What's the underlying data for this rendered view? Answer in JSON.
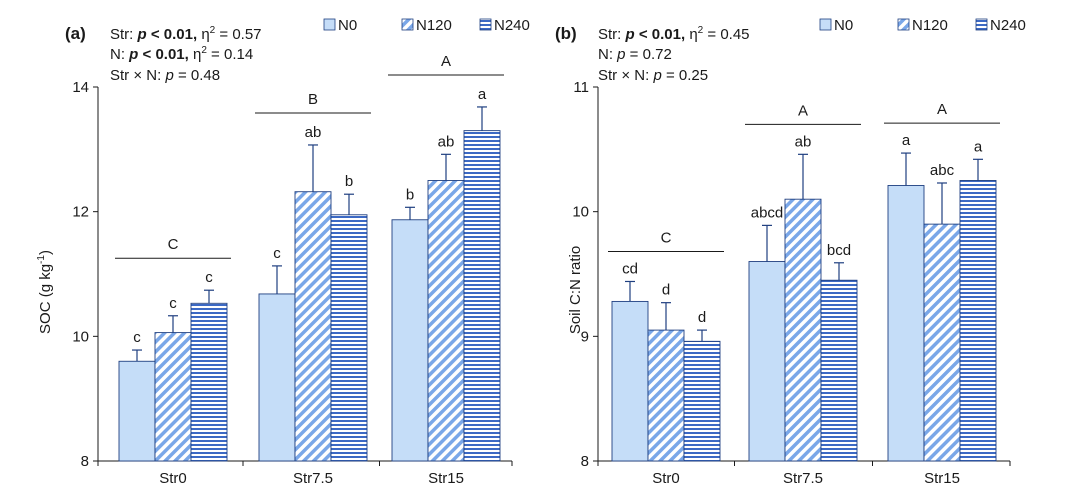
{
  "colors": {
    "n0_fill": "#c5ddf8",
    "n120_bg": "#ffffff",
    "n120_stripe": "#7aa7e8",
    "n240_bg": "#ffffff",
    "n240_stripe": "#3c69c4",
    "edge": "#1f3f80",
    "axis": "#1a1a1a"
  },
  "chart_data": [
    {
      "type": "bar",
      "panel_label": "(a)",
      "stats": [
        {
          "prefix": "Str: ",
          "p": "p < 0.01,",
          "eta_suffix": " = 0.57"
        },
        {
          "prefix": "N: ",
          "p": "p < 0.01,",
          "eta_suffix": " = 0.14"
        },
        {
          "prefix": "Str × N: ",
          "p_plain": "p = 0.48"
        }
      ],
      "ylabel": "SOC (g kg",
      "ylabel_sup": "-1",
      "ylabel_end": ")",
      "ylim": [
        8,
        14
      ],
      "yticks": [
        "8",
        "10",
        "12",
        "14"
      ],
      "categories": [
        "Str0",
        "Str7.5",
        "Str15"
      ],
      "group_letters": [
        "C",
        "B",
        "A"
      ],
      "series": [
        {
          "name": "N0",
          "values": [
            9.6,
            10.68,
            11.87
          ],
          "errors": [
            0.18,
            0.45,
            0.2
          ],
          "letters": [
            "c",
            "c",
            "b"
          ]
        },
        {
          "name": "N120",
          "values": [
            10.06,
            12.32,
            12.5
          ],
          "errors": [
            0.27,
            0.75,
            0.42
          ],
          "letters": [
            "c",
            "ab",
            "ab"
          ]
        },
        {
          "name": "N240",
          "values": [
            10.53,
            11.95,
            13.3
          ],
          "errors": [
            0.21,
            0.33,
            0.38
          ],
          "letters": [
            "c",
            "b",
            "a"
          ]
        }
      ],
      "legend": [
        "N0",
        "N120",
        "N240"
      ],
      "legend_position": "top-right"
    },
    {
      "type": "bar",
      "panel_label": "(b)",
      "stats": [
        {
          "prefix": "Str: ",
          "p": "p < 0.01,",
          "eta_suffix": " = 0.45"
        },
        {
          "prefix": "N: ",
          "p_plain": "p = 0.72"
        },
        {
          "prefix": "Str × N: ",
          "p_plain": "p = 0.25"
        }
      ],
      "ylabel": "Soil C:N ratio",
      "ylim": [
        8,
        11
      ],
      "yticks": [
        "8",
        "9",
        "10",
        "11"
      ],
      "categories": [
        "Str0",
        "Str7.5",
        "Str15"
      ],
      "group_letters": [
        "C",
        "A",
        "A"
      ],
      "series": [
        {
          "name": "N0",
          "values": [
            9.28,
            9.6,
            10.21
          ],
          "errors": [
            0.16,
            0.29,
            0.26
          ],
          "letters": [
            "cd",
            "abcd",
            "a"
          ]
        },
        {
          "name": "N120",
          "values": [
            9.05,
            10.1,
            9.9
          ],
          "errors": [
            0.22,
            0.36,
            0.33
          ],
          "letters": [
            "d",
            "ab",
            "abc"
          ]
        },
        {
          "name": "N240",
          "values": [
            8.96,
            9.45,
            10.25
          ],
          "errors": [
            0.09,
            0.14,
            0.17
          ],
          "letters": [
            "d",
            "bcd",
            "a"
          ]
        }
      ],
      "legend": [
        "N0",
        "N120",
        "N240"
      ],
      "legend_position": "top-right"
    }
  ]
}
